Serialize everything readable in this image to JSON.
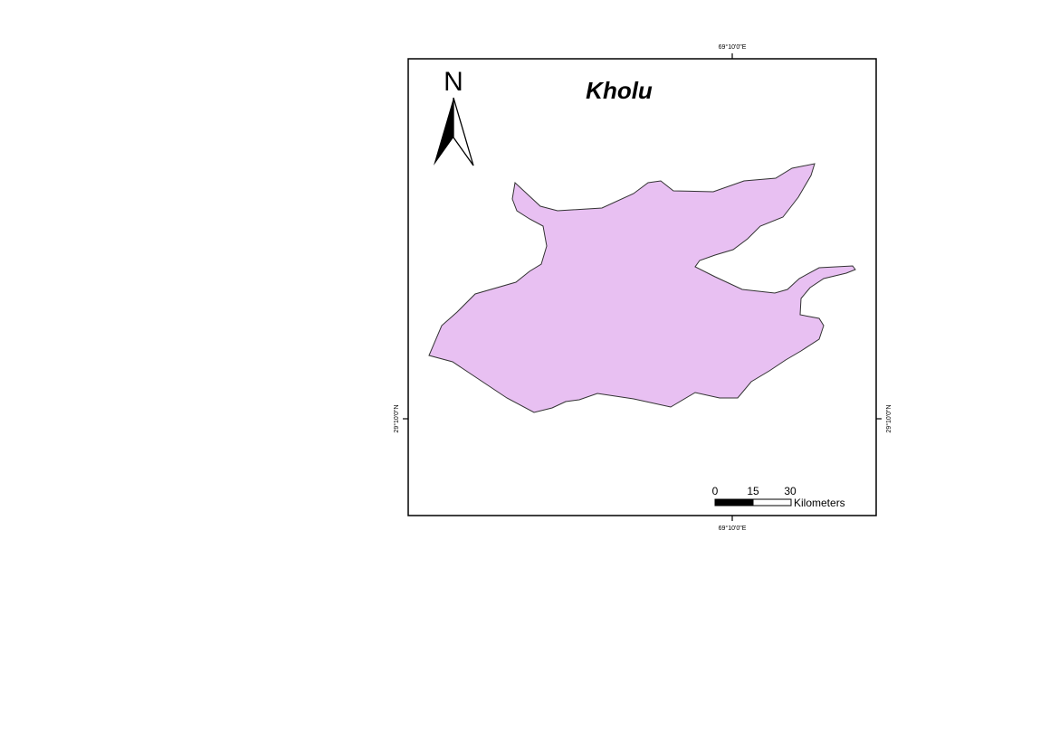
{
  "map": {
    "title": "Kholu",
    "north_arrow_label": "N",
    "region_fill": "#e8c0f2",
    "region_stroke": "#333333",
    "frame_color": "#000000",
    "graticule": {
      "longitude_label": "69°10'0\"E",
      "latitude_label": "29°10'0\"N"
    },
    "scale_bar": {
      "ticks": [
        "0",
        "15",
        "30"
      ],
      "unit": "Kilometers"
    }
  }
}
